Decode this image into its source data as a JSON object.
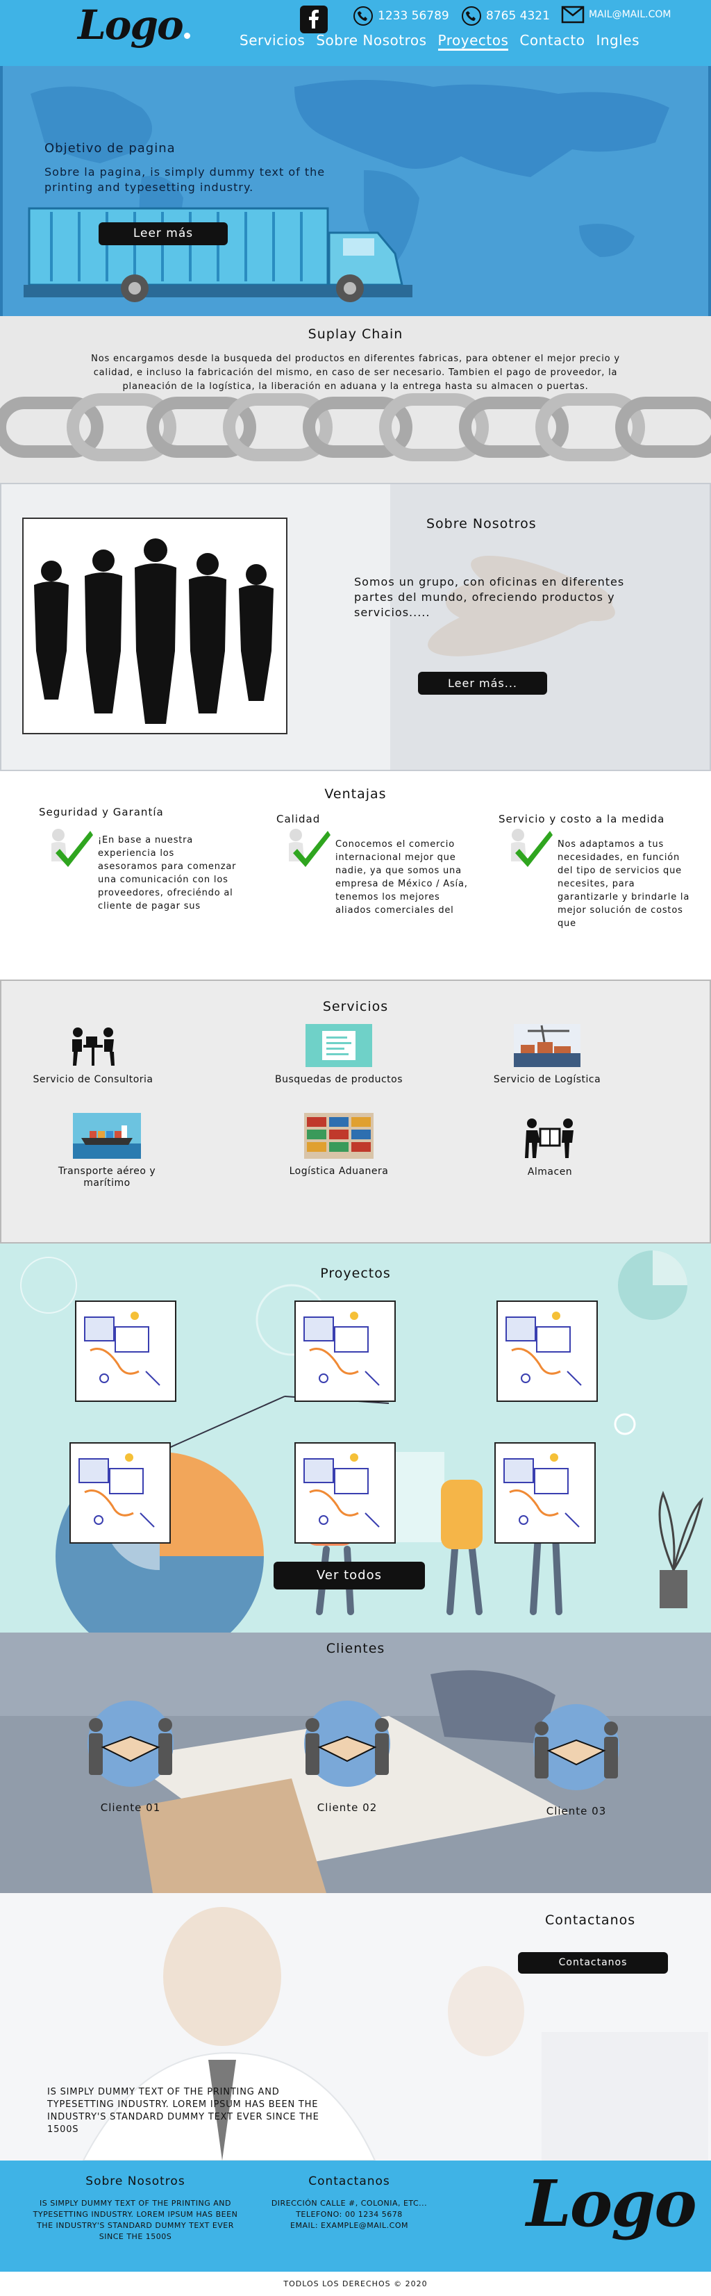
{
  "header": {
    "logo": "Logo",
    "phone1": "1233 56789",
    "phone2": "8765 4321",
    "email": "mail@mail.com",
    "nav": [
      "Servicios",
      "Sobre Nosotros",
      "Proyectos",
      "Contacto",
      "Ingles"
    ],
    "active_nav": "Proyectos"
  },
  "hero": {
    "title": "Objetivo de pagina",
    "text": "Sobre la pagina, is simply dummy text of the printing and typesetting industry.",
    "button": "Leer más"
  },
  "supply": {
    "title": "Suplay Chain",
    "text": "Nos encargamos desde la busqueda del productos en diferentes fabricas, para obtener el mejor precio y calidad, e incluso la fabricación del mismo, en caso de ser necesario. Tambien el pago de proveedor, la planeación de la logística, la liberación en aduana y la entrega hasta su almacen o puertas."
  },
  "nosotros": {
    "title": "Sobre Nosotros",
    "text": "Somos un grupo, con oficinas en diferentes partes del mundo, ofreciendo productos y servicios.....",
    "button": "Leer más..."
  },
  "ventajas": {
    "title": "Ventajas",
    "items": [
      {
        "title": "Seguridad y Garantía",
        "text": "¡En base a nuestra experiencia los asesoramos para comenzar una comunicación con los proveedores, ofreciéndo al cliente de pagar sus"
      },
      {
        "title": "Calidad",
        "text": "Conocemos el comercio internacional mejor que nadie, ya que somos una empresa de México / Asía, tenemos los mejores aliados comerciales del"
      },
      {
        "title": "Servicio y costo a la medida",
        "text": "Nos adaptamos a tus necesidades, en función del tipo de servicios que necesites, para garantizarle y brindarle la mejor solución de costos que"
      }
    ]
  },
  "servicios": {
    "title": "Servicios",
    "items": [
      {
        "label": "Servicio de Consultoria",
        "icon": "consulting-icon"
      },
      {
        "label": "Busquedas de productos",
        "icon": "search-products-icon"
      },
      {
        "label": "Servicio de Logística",
        "icon": "logistics-icon"
      },
      {
        "label": "Transporte aéreo y marítimo",
        "icon": "ship-icon"
      },
      {
        "label": "Logística Aduanera",
        "icon": "containers-icon"
      },
      {
        "label": "Almacen",
        "icon": "warehouse-icon"
      }
    ]
  },
  "proyectos": {
    "title": "Proyectos",
    "button": "Ver todos"
  },
  "clientes": {
    "title": "Clientes",
    "items": [
      "Cliente 01",
      "Cliente 02",
      "Cliente 03"
    ]
  },
  "contactanos": {
    "title": "Contactanos",
    "button": "Contactanos",
    "text": "is simply dummy text of the printing and typesetting industry. Lorem Ipsum has been the industry's standard dummy text ever since the 1500s"
  },
  "footer": {
    "about_title": "Sobre Nosotros",
    "about_text": "is simply dummy text of the printing and typesetting industry. Lorem Ipsum has been the industry's standard dummy text ever since the 1500s",
    "contact_title": "Contactanos",
    "address": "Dirección Calle #, colonia, etc...",
    "phone": "Telefono: 00 1234 5678",
    "email": "Email: example@mail.com",
    "logo": "Logo",
    "copyright": "Todlos los derechos © 2020"
  },
  "colors": {
    "primary": "#3fb3e6",
    "dark": "#111111",
    "check": "#2fa51f"
  }
}
